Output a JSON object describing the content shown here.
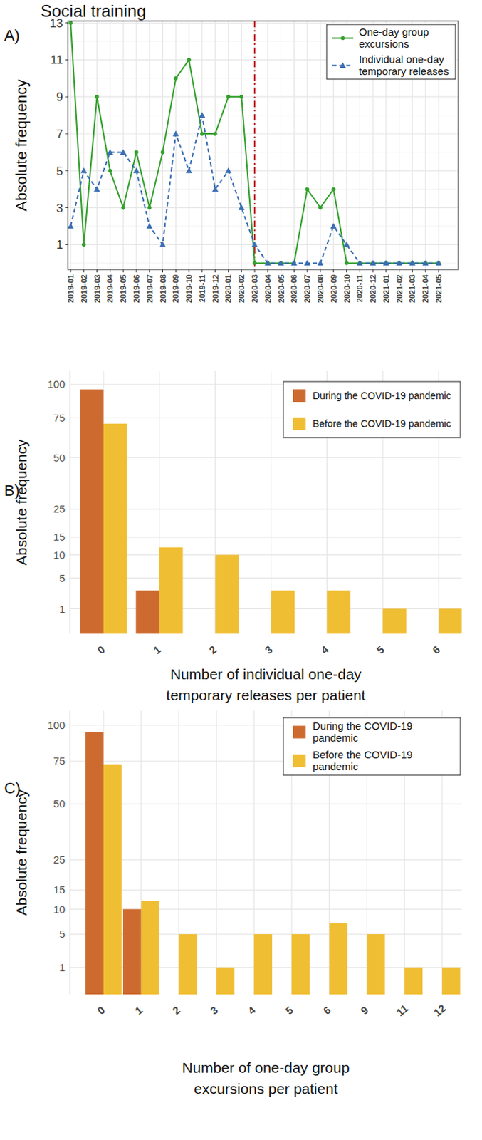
{
  "title": "Social training",
  "chart_data": [
    {
      "panel_label": "A)",
      "type": "line",
      "y_label": "Absolute frequency",
      "categories": [
        "2019-01",
        "2019-02",
        "2019-03",
        "2019-04",
        "2019-05",
        "2019-06",
        "2019-07",
        "2019-08",
        "2019-09",
        "2019-10",
        "2019-11",
        "2019-12",
        "2020-01",
        "2020-02",
        "2020-03",
        "2020-04",
        "2020-05",
        "2020-06",
        "2020-07",
        "2020-08",
        "2020-09",
        "2020-10",
        "2020-11",
        "2020-12",
        "2021-01",
        "2021-02",
        "2021-03",
        "2021-04",
        "2021-05"
      ],
      "series": [
        {
          "name": "One-day group excursions",
          "color": "#33a02c",
          "marker": "circle",
          "line_style": "solid",
          "values": [
            13,
            1,
            9,
            5,
            3,
            6,
            3,
            6,
            10,
            11,
            7,
            7,
            9,
            9,
            0,
            0,
            0,
            0,
            4,
            3,
            4,
            0,
            0,
            0,
            0,
            0,
            0,
            0,
            0
          ]
        },
        {
          "name": "Individual one-day temporary releases",
          "color": "#3b6eb3",
          "marker": "triangle",
          "line_style": "dashed",
          "values": [
            2,
            5,
            4,
            6,
            6,
            5,
            2,
            1,
            7,
            5,
            8,
            4,
            5,
            3,
            1,
            0,
            0,
            0,
            0,
            0,
            2,
            1,
            0,
            0,
            0,
            0,
            0,
            0,
            0
          ]
        }
      ],
      "ylim": [
        -0.35,
        13.1
      ],
      "yticks": [
        1,
        3,
        5,
        7,
        9,
        11,
        13
      ],
      "grid": true,
      "legend": "top-right",
      "annotations": [
        {
          "x": "2020-03",
          "color": "#c0272d",
          "line_style": "dashdot"
        }
      ]
    },
    {
      "panel_label": "B)",
      "type": "bar",
      "y_label": "Absolute frequency",
      "x_label": "Number of individual one-day\ntemporary releases per patient",
      "categories": [
        0,
        1,
        2,
        3,
        4,
        5,
        6
      ],
      "series": [
        {
          "name": "During the COVID-19 pandemic",
          "color": "#cd6a2f",
          "values": [
            96,
            3,
            0,
            0,
            0,
            0,
            0
          ]
        },
        {
          "name": "Before the COVID-19 pandemic",
          "color": "#f0be33",
          "values": [
            71,
            12,
            10,
            3,
            3,
            1,
            1
          ]
        }
      ],
      "ylim": [
        0,
        111
      ],
      "yticks": [
        1,
        5,
        10,
        15,
        25,
        50,
        75,
        100
      ],
      "grid": true,
      "legend": "top-right"
    },
    {
      "panel_label": "C)",
      "type": "bar",
      "y_label": "Absolute frequency",
      "x_label": "Number of one-day group\nexcursions per patient",
      "categories": [
        0,
        1,
        2,
        3,
        4,
        5,
        6,
        9,
        11,
        12
      ],
      "series": [
        {
          "name": "During the COVID-19 pandemic",
          "color": "#cd6a2f",
          "values": [
            95,
            10,
            0,
            0,
            0,
            0,
            0,
            0,
            0,
            0
          ]
        },
        {
          "name": "Before the COVID-19 pandemic",
          "color": "#f0be33",
          "values": [
            73,
            12,
            5,
            1,
            5,
            5,
            7,
            5,
            1,
            1
          ]
        }
      ],
      "ylim": [
        0,
        111
      ],
      "yticks": [
        1,
        5,
        10,
        15,
        25,
        50,
        75,
        100
      ],
      "grid": true,
      "legend": "top-right"
    }
  ]
}
